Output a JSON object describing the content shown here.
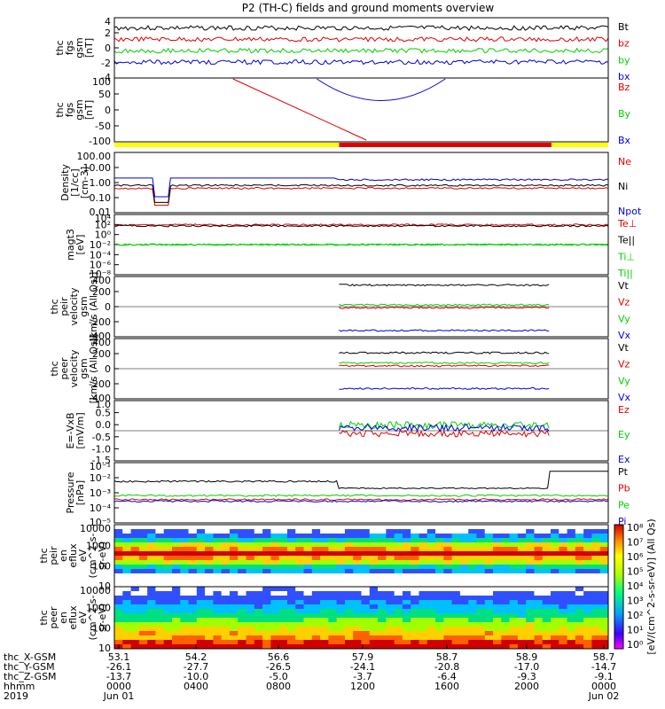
{
  "title": "P2 (TH-C) fields and ground moments overview",
  "colors": {
    "black": "#000000",
    "red": "#e00000",
    "green": "#00d000",
    "blue": "#0000e0",
    "yellow": "#ffff00"
  },
  "chart_data": [
    {
      "type": "line",
      "ylabel": [
        "thc",
        "fgs",
        "gsm",
        "[nT]"
      ],
      "yticks": [
        "4",
        "2",
        "0",
        "-2",
        "-4"
      ],
      "ylim": [
        -4,
        4
      ],
      "series": [
        {
          "name": "Bt",
          "color": "#000000"
        },
        {
          "name": "bz",
          "color": "#e00000"
        },
        {
          "name": "by",
          "color": "#00d000"
        },
        {
          "name": "bx",
          "color": "#0000e0"
        }
      ]
    },
    {
      "type": "line",
      "ylabel": [
        "thc",
        "fgs",
        "gsm",
        "[nT]"
      ],
      "yticks": [
        "100",
        "50",
        "0",
        "-50",
        "-100"
      ],
      "ylim": [
        -130,
        100
      ],
      "series": [
        {
          "name": "Bz",
          "color": "#e00000"
        },
        {
          "name": "By",
          "color": "#00d000"
        },
        {
          "name": "Bx",
          "color": "#0000e0"
        }
      ]
    },
    {
      "type": "line",
      "log": true,
      "ylabel": [
        "Density",
        "[1/cc]",
        "[cm-3]"
      ],
      "yticks": [
        "100.00",
        "10.00",
        "1.00",
        "0.10",
        "0.01"
      ],
      "ylim": [
        0.005,
        200
      ],
      "series": [
        {
          "name": "Ne",
          "color": "#e00000"
        },
        {
          "name": "Ni",
          "color": "#000000"
        },
        {
          "name": "Npot",
          "color": "#0000e0"
        }
      ]
    },
    {
      "type": "line",
      "log": true,
      "ylabel": [
        "magt3",
        "[eV]"
      ],
      "yticks": [
        "10⁴",
        "10²",
        "10⁰",
        "10⁻²",
        "10⁻⁴",
        "10⁻⁶",
        "10⁻⁸"
      ],
      "series": [
        {
          "name": "Te⊥",
          "color": "#e00000"
        },
        {
          "name": "Te||",
          "color": "#000000"
        },
        {
          "name": "Ti⊥",
          "color": "#00d000"
        },
        {
          "name": "Ti||",
          "color": "#00d000"
        }
      ]
    },
    {
      "type": "line",
      "ylabel": [
        "thc",
        "peir",
        "velocity",
        "gsm",
        "[km/s (All Qs)]"
      ],
      "yticks": [
        "400",
        "200",
        "0",
        "-200",
        "-400"
      ],
      "ylim": [
        -400,
        400
      ],
      "series": [
        {
          "name": "Vt",
          "color": "#000000"
        },
        {
          "name": "Vz",
          "color": "#e00000"
        },
        {
          "name": "Vy",
          "color": "#00d000"
        },
        {
          "name": "Vx",
          "color": "#0000e0"
        }
      ]
    },
    {
      "type": "line",
      "ylabel": [
        "thc",
        "peer",
        "velocity",
        "gsm",
        "[km/s (All Qs)]"
      ],
      "yticks": [
        "400",
        "200",
        "0",
        "-200",
        "-400"
      ],
      "ylim": [
        -400,
        400
      ],
      "series": [
        {
          "name": "Vt",
          "color": "#000000"
        },
        {
          "name": "Vz",
          "color": "#e00000"
        },
        {
          "name": "Vy",
          "color": "#00d000"
        },
        {
          "name": "Vx",
          "color": "#0000e0"
        }
      ]
    },
    {
      "type": "line",
      "ylabel": [
        "E=-VxB",
        "[mV/m]"
      ],
      "yticks": [
        "1.0",
        "0.5",
        "0.0",
        "-0.5",
        "-1.0",
        "-1.5"
      ],
      "ylim": [
        -1.6,
        1.1
      ],
      "series": [
        {
          "name": "Ez",
          "color": "#e00000"
        },
        {
          "name": "Ey",
          "color": "#00d000"
        },
        {
          "name": "Ex",
          "color": "#0000e0"
        }
      ]
    },
    {
      "type": "line",
      "log": true,
      "ylabel": [
        "Pressure",
        "[nPa]"
      ],
      "yticks": [
        "10⁻¹",
        "10⁻²",
        "10⁻³",
        "10⁻⁴",
        "10⁻⁵"
      ],
      "series": [
        {
          "name": "Pt",
          "color": "#000000"
        },
        {
          "name": "Pb",
          "color": "#e00000"
        },
        {
          "name": "Pe",
          "color": "#00d000"
        },
        {
          "name": "Pi",
          "color": "#0000e0"
        }
      ]
    },
    {
      "type": "heatmap",
      "ylabel": [
        "thc",
        "peir",
        "en",
        "eflux",
        "eV",
        "(cm^2-s-",
        "sr-eV)"
      ],
      "yticks": [
        "10000",
        "1000",
        "100",
        "10"
      ]
    },
    {
      "type": "heatmap",
      "ylabel": [
        "thc",
        "peer",
        "en",
        "eflux",
        "eV",
        "(cm^2-s-",
        "sr-eV)"
      ],
      "yticks": [
        "10000",
        "1000",
        "100",
        "10"
      ]
    }
  ],
  "colorbar": {
    "ticks": [
      "10⁸",
      "10⁷",
      "10⁶",
      "10⁵",
      "10⁴",
      "10³",
      "10²",
      "10¹",
      "10⁰"
    ],
    "label": "[eV/(cm^2-s-sr-eV)] (All Qs)"
  },
  "xaxis": {
    "rows": [
      {
        "label": "thc_X-GSM",
        "values": [
          "53.1",
          "54.2",
          "56.6",
          "57.9",
          "58.7",
          "58.9",
          "58.7"
        ]
      },
      {
        "label": "thc_Y-GSM",
        "values": [
          "-26.1",
          "-27.7",
          "-26.5",
          "-24.1",
          "-20.8",
          "-17.0",
          "-14.7"
        ]
      },
      {
        "label": "thc_Z-GSM",
        "values": [
          "-13.7",
          "-10.0",
          "-5.0",
          "-3.7",
          "-6.4",
          "-9.3",
          "-9.1"
        ]
      },
      {
        "label": "hhmm",
        "values": [
          "0000",
          "0400",
          "0800",
          "1200",
          "1600",
          "2000",
          "0000"
        ]
      },
      {
        "label": "2019",
        "values": [
          "Jun 01",
          "",
          "",
          "",
          "",
          "",
          "Jun 02"
        ]
      }
    ]
  }
}
